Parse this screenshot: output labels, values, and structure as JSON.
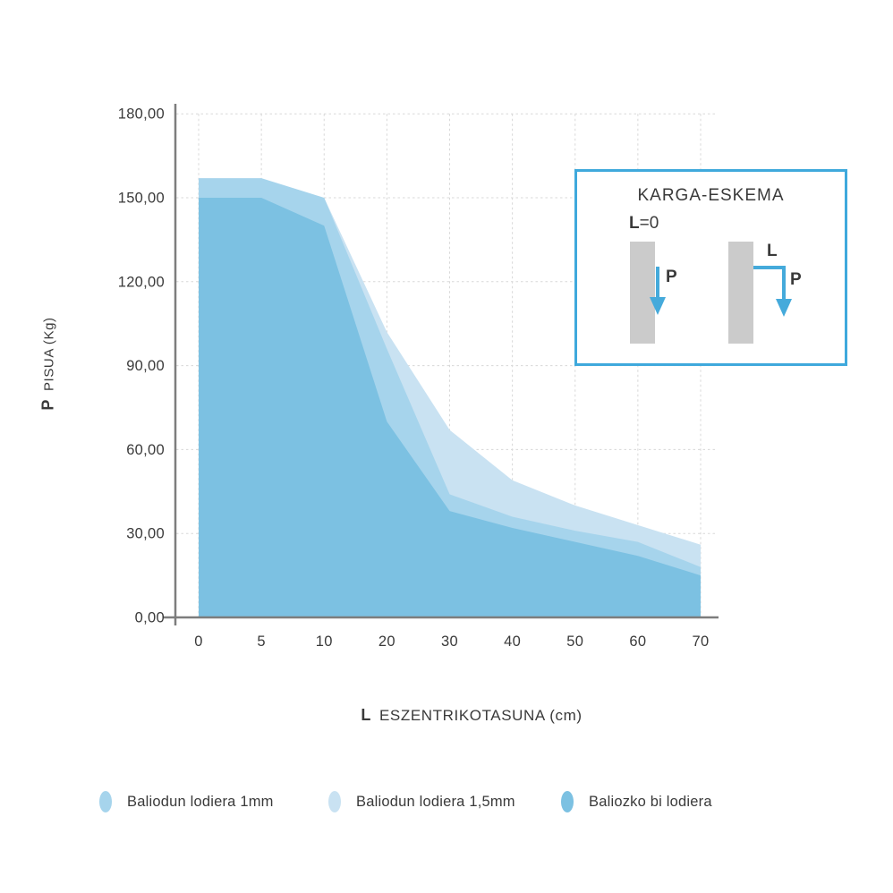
{
  "chart_data": {
    "type": "area",
    "title": "",
    "xlabel": "ESZENTRIKOTASUNA (cm)",
    "xlabel_symbol": "L",
    "ylabel": "PISUA (Kg)",
    "ylabel_symbol": "P",
    "categories": [
      0,
      5,
      10,
      20,
      30,
      40,
      50,
      60,
      70
    ],
    "x_tick_labels": [
      "0",
      "5",
      "10",
      "20",
      "30",
      "40",
      "50",
      "60",
      "70"
    ],
    "y_tick_labels": [
      "0,00",
      "30,00",
      "60,00",
      "90,00",
      "120,00",
      "150,00",
      "180,00"
    ],
    "y_tick_values": [
      0,
      30,
      60,
      90,
      120,
      150,
      180
    ],
    "ylim": [
      0,
      180
    ],
    "grid": true,
    "gridline_color": "#d8d8d8",
    "axis_color": "#7d7d7d",
    "legend_position": "bottom",
    "series": [
      {
        "name": "Baliodun lodiera 1,5mm",
        "color": "#c9e2f2",
        "values": [
          150,
          150,
          150,
          102,
          67,
          49,
          40,
          33,
          26
        ]
      },
      {
        "name": "Baliodun lodiera 1mm",
        "color": "#a6d4ec",
        "values": [
          157,
          157,
          150,
          96,
          44,
          36,
          31,
          27,
          18
        ]
      },
      {
        "name": "Baliozko bi lodiera",
        "color": "#7cc1e2",
        "values": [
          150,
          150,
          140,
          70,
          38,
          32,
          27,
          22,
          15
        ]
      }
    ]
  },
  "axes": {
    "x_title_symbol": "L",
    "x_title": "ESZENTRIKOTASUNA (cm)",
    "y_title_symbol": "P",
    "y_title": "PISUA (Kg)"
  },
  "legend": {
    "items": [
      {
        "label": "Baliodun lodiera 1mm",
        "color": "#a6d4ec"
      },
      {
        "label": "Baliodun lodiera 1,5mm",
        "color": "#c9e2f2"
      },
      {
        "label": "Baliozko bi lodiera",
        "color": "#7cc1e2"
      }
    ]
  },
  "inset": {
    "title": "KARGA-ESKEMA",
    "label_l0_symbol": "L",
    "label_l0_rest": "=0",
    "label_p_left": "P",
    "label_l_right": "L",
    "label_p_right": "P",
    "border_color": "#3fa9dc",
    "arrow_color": "#45aadb",
    "column_color": "#cbcbcb"
  }
}
